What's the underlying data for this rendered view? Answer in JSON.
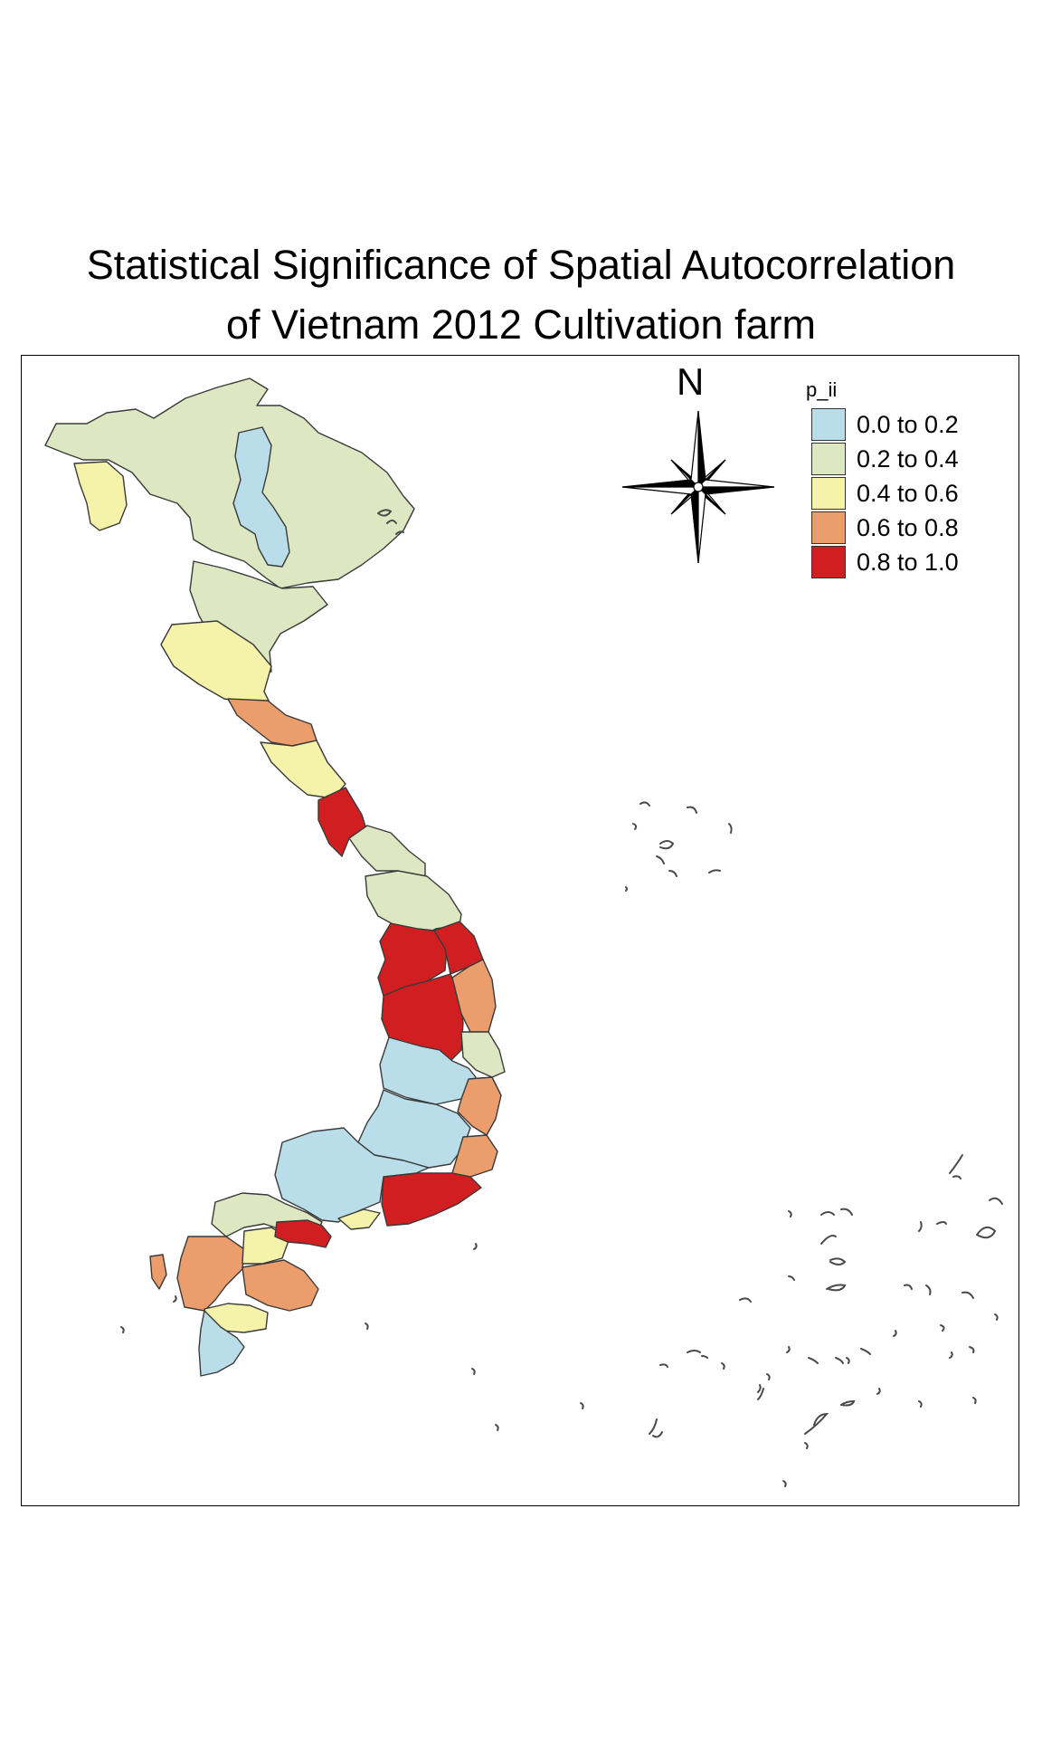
{
  "title": {
    "line1": "Statistical Significance of Spatial Autocorrelation",
    "line2": "of Vietnam 2012 Cultivation farm"
  },
  "legend": {
    "title": "p_ii",
    "classes": [
      {
        "label": "0.0 to 0.2",
        "color": "#b9dde9"
      },
      {
        "label": "0.2 to 0.4",
        "color": "#dde8c3"
      },
      {
        "label": "0.4 to 0.6",
        "color": "#f5f2aa"
      },
      {
        "label": "0.6 to 0.8",
        "color": "#ec9d6c"
      },
      {
        "label": "0.8 to 1.0",
        "color": "#d11f21"
      }
    ]
  },
  "compass": {
    "north_label": "N",
    "icon": "compass-rose-icon"
  },
  "map": {
    "country": "Vietnam",
    "regions": [
      {
        "name": "northern-highlands",
        "class": "0.2 to 0.4"
      },
      {
        "name": "northwest-border",
        "class": "0.4 to 0.6"
      },
      {
        "name": "central-north-band",
        "class": "0.0 to 0.2"
      },
      {
        "name": "red-river-delta",
        "class": "0.2 to 0.4"
      },
      {
        "name": "thanh-hoa",
        "class": "0.4 to 0.6"
      },
      {
        "name": "nghe-an-coast",
        "class": "0.6 to 0.8"
      },
      {
        "name": "ha-tinh",
        "class": "0.4 to 0.6"
      },
      {
        "name": "quang-binh",
        "class": "0.8 to 1.0"
      },
      {
        "name": "quang-tri-hue",
        "class": "0.2 to 0.4"
      },
      {
        "name": "quang-nam",
        "class": "0.2 to 0.4"
      },
      {
        "name": "kon-tum",
        "class": "0.8 to 1.0"
      },
      {
        "name": "quang-ngai",
        "class": "0.8 to 1.0"
      },
      {
        "name": "gia-lai",
        "class": "0.8 to 1.0"
      },
      {
        "name": "binh-dinh",
        "class": "0.6 to 0.8"
      },
      {
        "name": "phu-yen",
        "class": "0.2 to 0.4"
      },
      {
        "name": "dak-lak",
        "class": "0.0 to 0.2"
      },
      {
        "name": "khanh-hoa",
        "class": "0.6 to 0.8"
      },
      {
        "name": "central-highlands-south",
        "class": "0.0 to 0.2"
      },
      {
        "name": "ninh-thuan",
        "class": "0.6 to 0.8"
      },
      {
        "name": "binh-thuan",
        "class": "0.8 to 1.0"
      },
      {
        "name": "southeast",
        "class": "0.0 to 0.2"
      },
      {
        "name": "vung-tau",
        "class": "0.4 to 0.6"
      },
      {
        "name": "mekong-north",
        "class": "0.2 to 0.4"
      },
      {
        "name": "mekong-west",
        "class": "0.6 to 0.8"
      },
      {
        "name": "mekong-central",
        "class": "0.4 to 0.6"
      },
      {
        "name": "mekong-red",
        "class": "0.8 to 1.0"
      },
      {
        "name": "mekong-east",
        "class": "0.6 to 0.8"
      },
      {
        "name": "mekong-south-yellow",
        "class": "0.4 to 0.6"
      },
      {
        "name": "ca-mau",
        "class": "0.0 to 0.2"
      }
    ]
  }
}
